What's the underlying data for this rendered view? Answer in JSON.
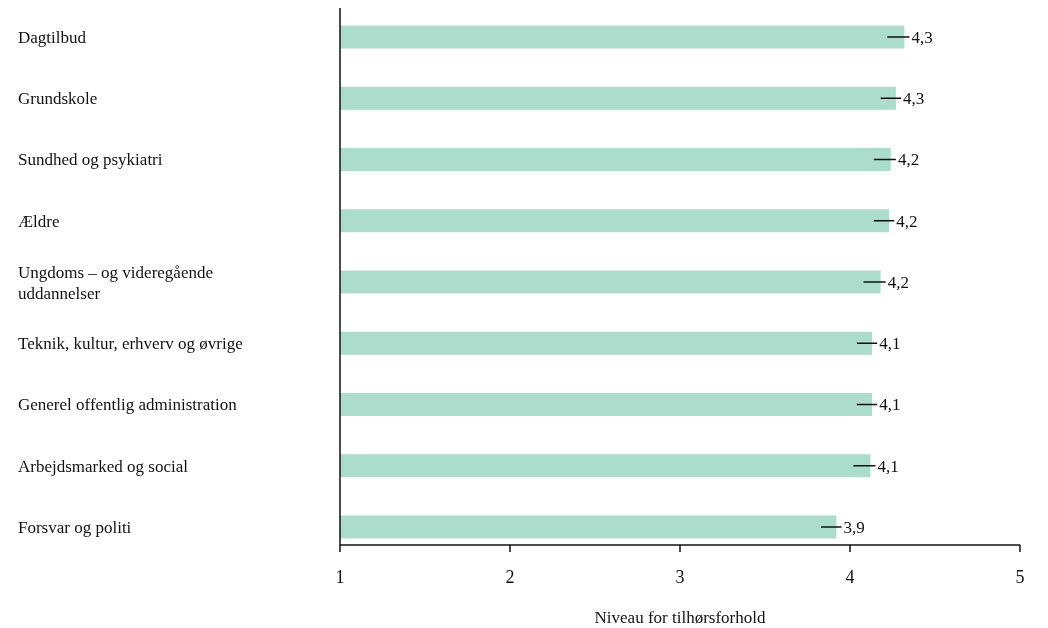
{
  "chart_data": {
    "type": "bar",
    "orientation": "horizontal",
    "xlabel": "Niveau for tilhørsforhold",
    "categories": [
      "Dagtilbud",
      "Grundskole",
      "Sundhed og psykiatri",
      "Ældre",
      "Ungdoms – og videregående uddannelser",
      "Teknik, kultur, erhverv og øvrige",
      "Generel offentlig administration",
      "Arbejdsmarked og social",
      "Forsvar og politi"
    ],
    "values": [
      4.32,
      4.27,
      4.24,
      4.23,
      4.18,
      4.13,
      4.13,
      4.12,
      3.92
    ],
    "errors": [
      [
        4.22,
        4.35
      ],
      [
        4.18,
        4.3
      ],
      [
        4.14,
        4.27
      ],
      [
        4.14,
        4.26
      ],
      [
        4.08,
        4.21
      ],
      [
        4.04,
        4.16
      ],
      [
        4.04,
        4.16
      ],
      [
        4.02,
        4.15
      ],
      [
        3.83,
        3.95
      ]
    ],
    "value_labels": [
      "4,3",
      "4,3",
      "4,2",
      "4,2",
      "4,2",
      "4,1",
      "4,1",
      "4,1",
      "3,9"
    ],
    "color": "#acdccb",
    "xlim": [
      1,
      5
    ],
    "xticks": [
      1,
      2,
      3,
      4,
      5
    ]
  }
}
